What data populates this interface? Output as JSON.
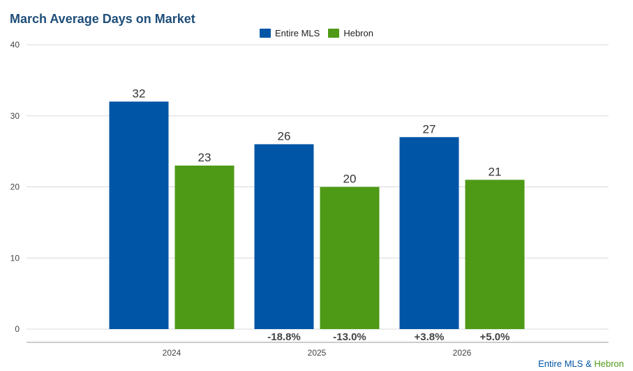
{
  "chart_data": {
    "type": "bar",
    "title": "March Average Days on Market",
    "categories": [
      "2024",
      "2025",
      "2026"
    ],
    "series": [
      {
        "name": "Entire MLS",
        "color": "#0055a6",
        "values": [
          32,
          26,
          27
        ],
        "changes": [
          "",
          "-18.8%",
          "+3.8%"
        ]
      },
      {
        "name": "Hebron",
        "color": "#4e9a16",
        "values": [
          23,
          20,
          21
        ],
        "changes": [
          "",
          "-13.0%",
          "+5.0%"
        ]
      }
    ],
    "yticks": [
      0,
      10,
      20,
      30,
      40
    ],
    "ylim": [
      0,
      40
    ],
    "grid": true,
    "legend_position": "top-center"
  },
  "footer": {
    "mls": "Entire MLS",
    "amp": " & ",
    "town": "Hebron"
  }
}
